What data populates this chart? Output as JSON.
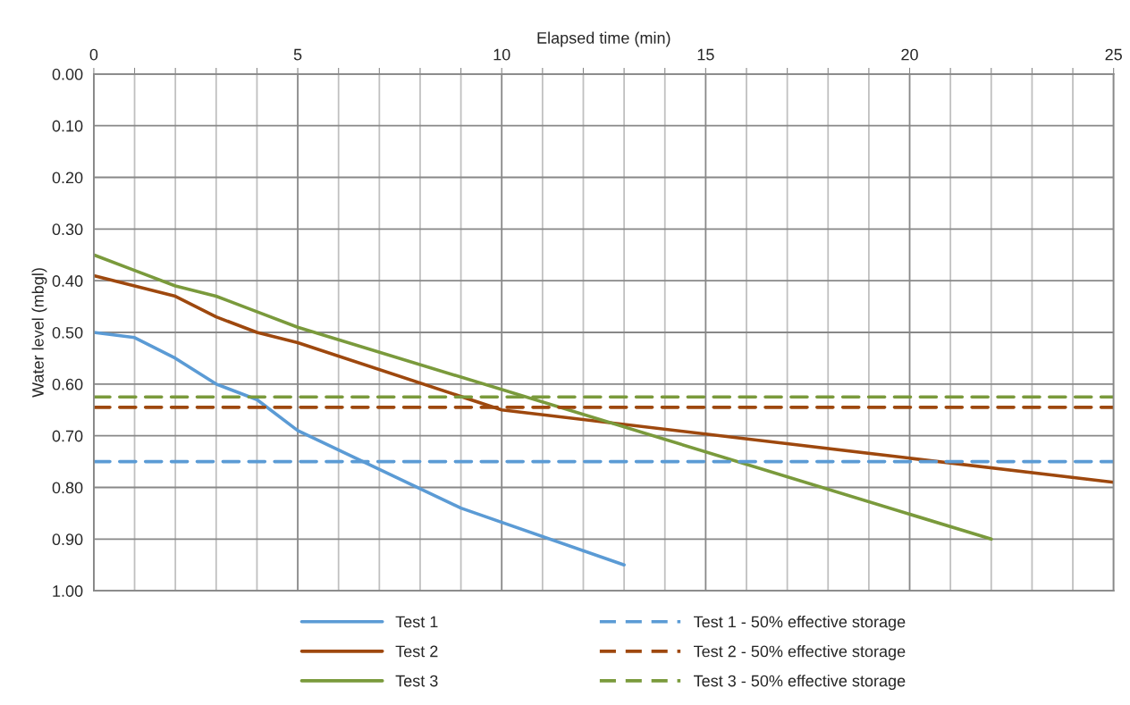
{
  "chart_data": {
    "type": "line",
    "xlabel": "Elapsed time (min)",
    "ylabel": "Water level (mbgl)",
    "xlim": [
      0,
      25
    ],
    "ylim": [
      1.0,
      0.0
    ],
    "xticks": [
      0,
      {
        "value": 1,
        "label": null
      },
      {
        "value": 2,
        "label": null
      },
      {
        "value": 3,
        "label": null
      },
      {
        "value": 4,
        "label": null
      },
      5,
      {
        "value": 6,
        "label": null
      },
      {
        "value": 7,
        "label": null
      },
      {
        "value": 8,
        "label": null
      },
      {
        "value": 9,
        "label": null
      },
      10,
      {
        "value": 11,
        "label": null
      },
      {
        "value": 12,
        "label": null
      },
      {
        "value": 13,
        "label": null
      },
      {
        "value": 14,
        "label": null
      },
      15,
      {
        "value": 16,
        "label": null
      },
      {
        "value": 17,
        "label": null
      },
      {
        "value": 18,
        "label": null
      },
      {
        "value": 19,
        "label": null
      },
      20,
      {
        "value": 21,
        "label": null
      },
      {
        "value": 22,
        "label": null
      },
      {
        "value": 23,
        "label": null
      },
      {
        "value": 24,
        "label": null
      },
      25
    ],
    "yticks": [
      {
        "value": 0,
        "label": "0.00"
      },
      {
        "value": 0.1,
        "label": "0.10"
      },
      {
        "value": 0.2,
        "label": "0.20"
      },
      {
        "value": 0.3,
        "label": "0.30"
      },
      {
        "value": 0.4,
        "label": "0.40"
      },
      {
        "value": 0.5,
        "label": "0.50"
      },
      {
        "value": 0.6,
        "label": "0.60"
      },
      {
        "value": 0.7,
        "label": "0.70"
      },
      {
        "value": 0.8,
        "label": "0.80"
      },
      {
        "value": 0.9,
        "label": "0.90"
      },
      {
        "value": 1.0,
        "label": "1.00"
      }
    ],
    "grid": true,
    "legend": "bottom",
    "marker": "none",
    "line_style": "solid",
    "series": [
      {
        "name": "Test 1",
        "color": "#5b9bd5",
        "x": [
          0,
          1,
          2,
          3,
          4,
          5,
          9,
          13
        ],
        "values": [
          0.5,
          0.51,
          0.55,
          0.6,
          0.63,
          0.69,
          0.84,
          0.95
        ]
      },
      {
        "name": "Test 2",
        "color": "#9e480e",
        "x": [
          0,
          1,
          2,
          3,
          4,
          5,
          10,
          25
        ],
        "values": [
          0.39,
          0.41,
          0.43,
          0.47,
          0.5,
          0.52,
          0.65,
          0.79
        ]
      },
      {
        "name": "Test 3",
        "color": "#7a9a3c",
        "x": [
          0,
          1,
          2,
          3,
          4,
          5,
          22
        ],
        "values": [
          0.35,
          0.38,
          0.41,
          0.43,
          0.46,
          0.49,
          0.9
        ]
      }
    ],
    "ref_lines": [
      {
        "axis": "y",
        "value": 0.75,
        "label": "Test 1 - 50% effective storage",
        "color": "#5b9bd5",
        "line_style": "dashed"
      },
      {
        "axis": "y",
        "value": 0.645,
        "label": "Test 2 - 50% effective storage",
        "color": "#9e480e",
        "line_style": "dashed"
      },
      {
        "axis": "y",
        "value": 0.625,
        "label": "Test 3 - 50% effective storage",
        "color": "#7a9a3c",
        "line_style": "dashed"
      }
    ]
  }
}
